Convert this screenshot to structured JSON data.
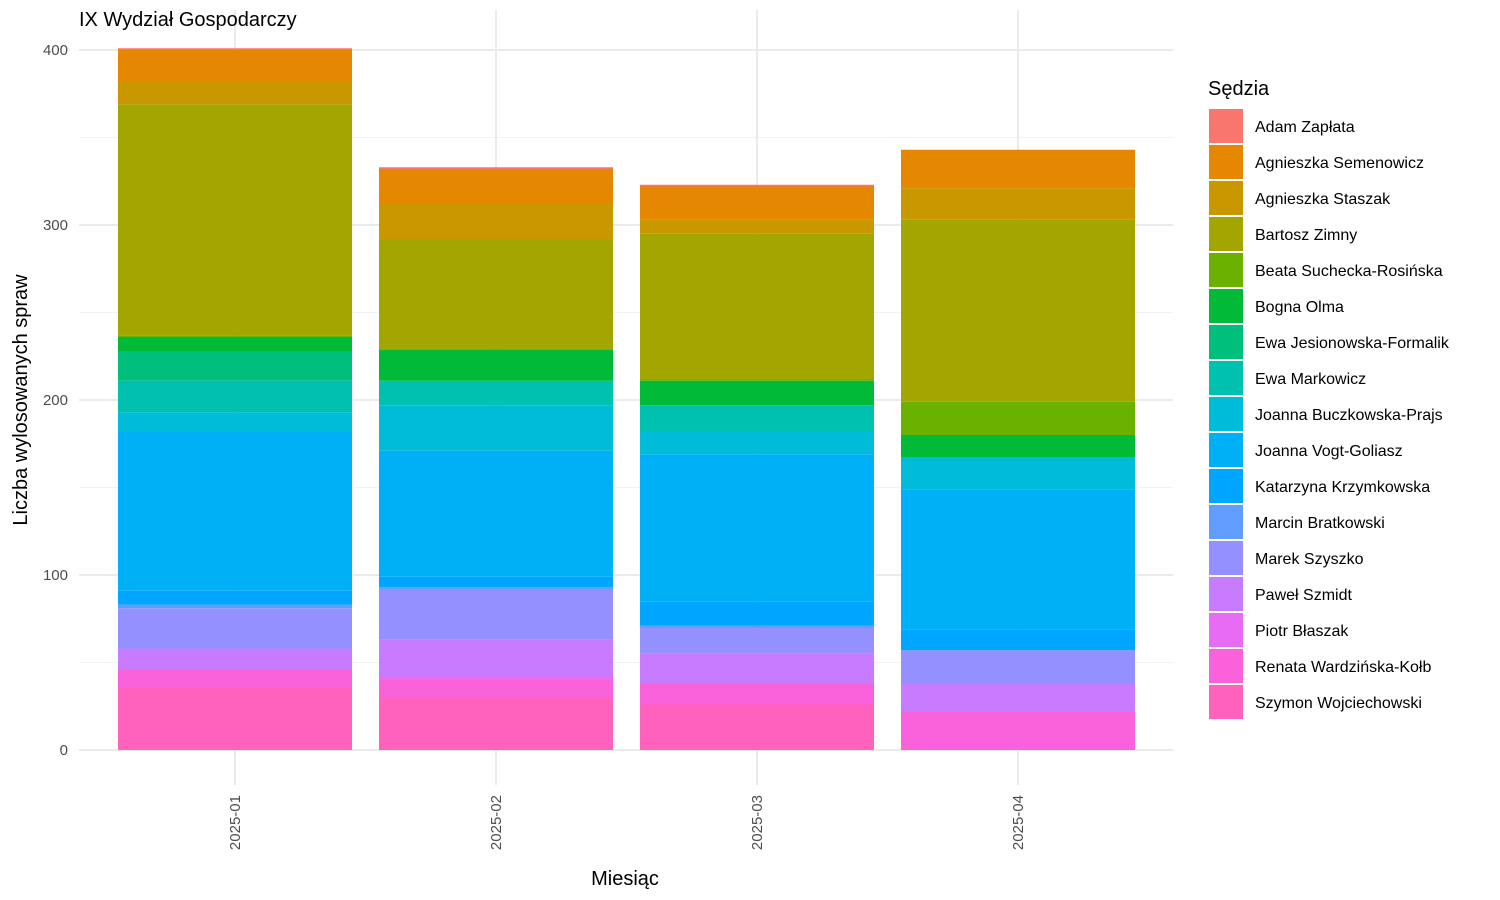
{
  "chart_data": {
    "type": "bar",
    "stacked": true,
    "title": "IX Wydział Gospodarczy",
    "xlabel": "Miesiąc",
    "ylabel": "Liczba wylosowanych spraw",
    "ylim": [
      0,
      410
    ],
    "yticks": [
      0,
      100,
      200,
      300,
      400
    ],
    "grid": true,
    "legend_title": "Sędzia",
    "legend_position": "right",
    "categories": [
      "2025-01",
      "2025-02",
      "2025-03",
      "2025-04"
    ],
    "series": [
      {
        "name": "Adam Zapłata",
        "color": "#F8766D",
        "values": [
          1,
          1,
          1,
          0
        ]
      },
      {
        "name": "Agnieszka Semenowicz",
        "color": "#E58700",
        "values": [
          18,
          20,
          19,
          22
        ]
      },
      {
        "name": "Agnieszka Staszak",
        "color": "#C99800",
        "values": [
          13,
          20,
          8,
          18
        ]
      },
      {
        "name": "Bartosz Zimny",
        "color": "#A3A500",
        "values": [
          132,
          63,
          83,
          104
        ]
      },
      {
        "name": "Beata Suchecka-Rosińska",
        "color": "#6BB100",
        "values": [
          1,
          0,
          1,
          19
        ]
      },
      {
        "name": "Bogna Olma",
        "color": "#00BA38",
        "values": [
          8,
          18,
          14,
          13
        ]
      },
      {
        "name": "Ewa Jesionowska-Formalik",
        "color": "#00BF7D",
        "values": [
          17,
          0,
          0,
          0
        ]
      },
      {
        "name": "Ewa Markowicz",
        "color": "#00C0AF",
        "values": [
          18,
          14,
          15,
          0
        ]
      },
      {
        "name": "Joanna Buczkowska-Prajs",
        "color": "#00BCD8",
        "values": [
          11,
          26,
          13,
          18
        ]
      },
      {
        "name": "Joanna Vogt-Goliasz",
        "color": "#00B0F6",
        "values": [
          91,
          72,
          84,
          80
        ]
      },
      {
        "name": "Katarzyna Krzymkowska",
        "color": "#00A5FF",
        "values": [
          8,
          6,
          14,
          12
        ]
      },
      {
        "name": "Marcin Bratkowski",
        "color": "#619CFF",
        "values": [
          2,
          1,
          1,
          0
        ]
      },
      {
        "name": "Marek Szyszko",
        "color": "#9590FF",
        "values": [
          23,
          29,
          15,
          19
        ]
      },
      {
        "name": "Paweł Szmidt",
        "color": "#C77CFF",
        "values": [
          12,
          21,
          17,
          16
        ]
      },
      {
        "name": "Piotr Błaszak",
        "color": "#E76BF3",
        "values": [
          0,
          2,
          0,
          0
        ]
      },
      {
        "name": "Renata Wardzińska-Kołb",
        "color": "#FA62DB",
        "values": [
          10,
          10,
          12,
          22
        ]
      },
      {
        "name": "Szymon Wojciechowski",
        "color": "#FF62BC",
        "values": [
          36,
          30,
          26,
          0
        ]
      }
    ]
  }
}
